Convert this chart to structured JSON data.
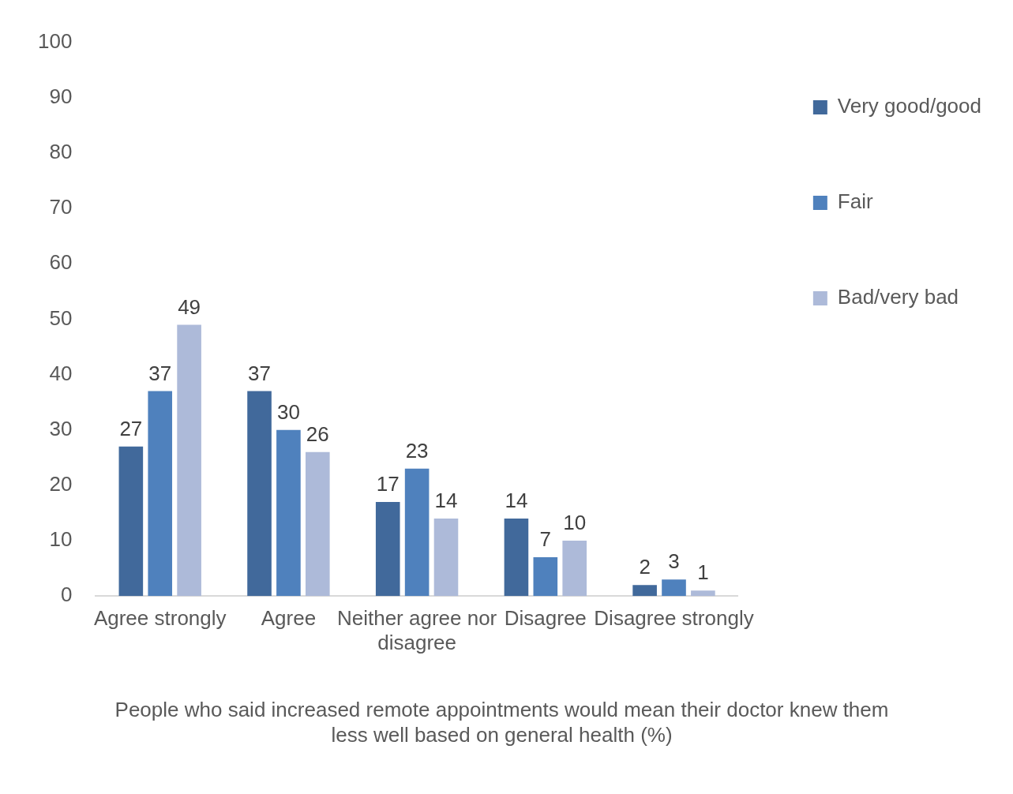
{
  "chart_data": {
    "type": "bar",
    "title": "People who said increased remote appointments would mean their doctor knew them less well based on general health (%)",
    "categories": [
      "Agree strongly",
      "Agree",
      "Neither agree nor disagree",
      "Disagree",
      "Disagree strongly"
    ],
    "series": [
      {
        "name": "Very good/good",
        "color": "#41699b",
        "values": [
          27,
          37,
          17,
          14,
          2
        ]
      },
      {
        "name": "Fair",
        "color": "#4f81bd",
        "values": [
          37,
          30,
          23,
          7,
          3
        ]
      },
      {
        "name": "Bad/very bad",
        "color": "#adbad9",
        "values": [
          49,
          26,
          14,
          10,
          1
        ]
      }
    ],
    "ylim": [
      0,
      100
    ],
    "yticks": [
      0,
      10,
      20,
      30,
      40,
      50,
      60,
      70,
      80,
      90,
      100
    ],
    "grid": false,
    "legend": "right",
    "data_labels": true
  }
}
